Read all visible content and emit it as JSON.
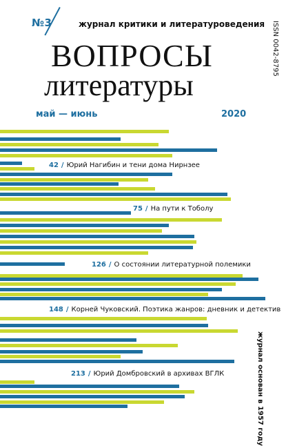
{
  "masthead": {
    "issue_number": "№3",
    "tagline": "журнал критики и литературоведения",
    "title_line1": "ВОПРОСЫ",
    "title_line2": "литературы",
    "issn": "ISSN 0042-8795",
    "period": "май — июнь",
    "year": "2020",
    "founded": "журнал основан в 1957 году"
  },
  "colors": {
    "lime": "#c9d831",
    "blue": "#1e6fa0",
    "text": "#111111",
    "background": "#ffffff"
  },
  "contents": [
    {
      "page": "42",
      "title": "Юрий Нагибин и тени дома Нирнзее"
    },
    {
      "page": "75",
      "title": "На пути к Тоболу"
    },
    {
      "page": "126",
      "title": "О состоянии литературной полемики"
    },
    {
      "page": "148",
      "title": "Корней Чуковский. Поэтика жанров: дневник и детектив"
    },
    {
      "page": "213",
      "title": "Юрий Домбровский в архивах ВГЛК"
    }
  ]
}
